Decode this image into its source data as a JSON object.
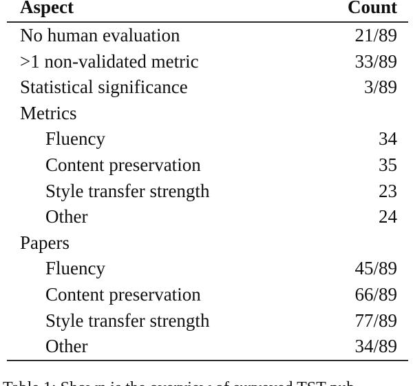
{
  "table": {
    "header": {
      "aspect": "Aspect",
      "count": "Count"
    },
    "rows": [
      {
        "label": "No human evaluation",
        "value": "21/89",
        "indent": false
      },
      {
        "label": ">1 non-validated metric",
        "value": "33/89",
        "indent": false
      },
      {
        "label": "Statistical significance",
        "value": "3/89",
        "indent": false
      },
      {
        "label": "Metrics",
        "value": "",
        "indent": false
      },
      {
        "label": "Fluency",
        "value": "34",
        "indent": true
      },
      {
        "label": "Content preservation",
        "value": "35",
        "indent": true
      },
      {
        "label": "Style transfer strength",
        "value": "23",
        "indent": true
      },
      {
        "label": "Other",
        "value": "24",
        "indent": true
      },
      {
        "label": "Papers",
        "value": "",
        "indent": false
      },
      {
        "label": "Fluency",
        "value": "45/89",
        "indent": true
      },
      {
        "label": "Content preservation",
        "value": "66/89",
        "indent": true
      },
      {
        "label": "Style transfer strength",
        "value": "77/89",
        "indent": true
      },
      {
        "label": "Other",
        "value": "34/89",
        "indent": true
      }
    ]
  },
  "caption": {
    "text_partial": "Table 1: Shown is the overview of surveyed TST pub-"
  },
  "colors": {
    "background": "#ffffff",
    "text": "#0f0f0f",
    "rule": "#2b2b2b"
  }
}
